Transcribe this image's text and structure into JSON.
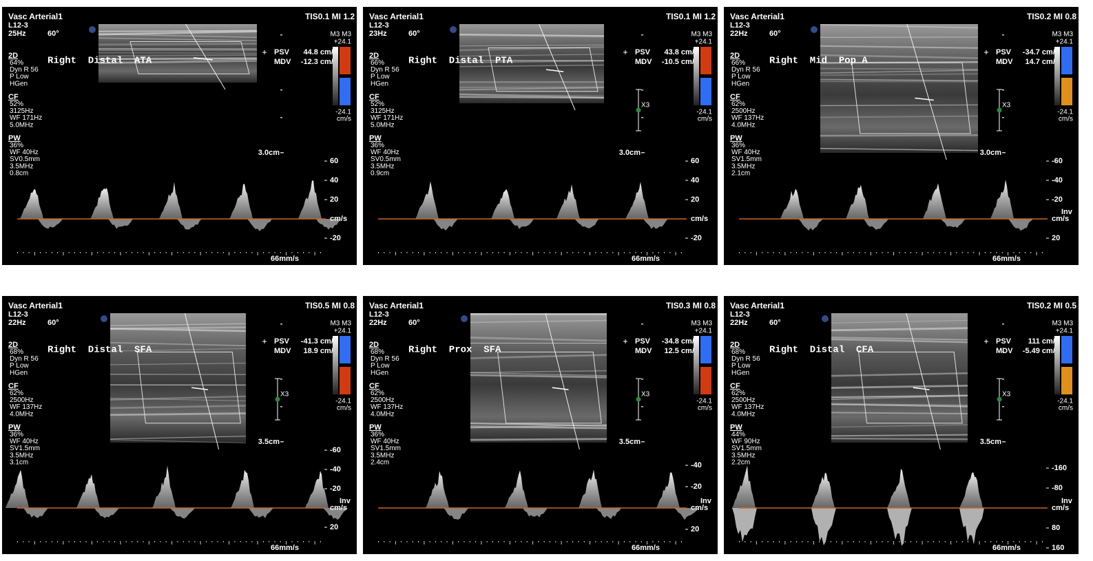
{
  "panels": [
    {
      "header": "Vasc Arterial1",
      "tis": "TIS0.1  MI 1.2",
      "probe": "L12-3",
      "rate": "25Hz",
      "angle": "60°",
      "groups": [
        {
          "title": "2D",
          "lines": [
            "64%",
            "Dyn R 56",
            "P Low",
            "HGen"
          ]
        },
        {
          "title": "CF",
          "lines": [
            "52%",
            "3125Hz",
            "WF 171Hz",
            "5.0MHz"
          ]
        },
        {
          "title": "PW",
          "lines": [
            "36%",
            "WF 40Hz",
            "SV0.5mm",
            "3.5MHz",
            "0.8cm"
          ]
        }
      ],
      "label": "Right  Distal  ATA",
      "psv_label": "PSV",
      "psv": "44.8 cm/s",
      "mdv_label": "MDV",
      "mdv": "-12.3 cm/s",
      "colorbar": {
        "mode": "M3 M3",
        "top": "+24.1",
        "bottom": "-24.1",
        "unit": "cm/s",
        "colors": [
          "#d23a10",
          "#2f6df5"
        ]
      },
      "depth": "3.0cm",
      "scale": [
        "60",
        "40",
        "20"
      ],
      "baseline": "cm/s",
      "scale_below": [
        "-20"
      ],
      "sweep": "66mm/s"
    },
    {
      "header": "Vasc Arterial1",
      "tis": "TIS0.1  MI 1.2",
      "probe": "L12-3",
      "rate": "23Hz",
      "angle": "60°",
      "groups": [
        {
          "title": "2D",
          "lines": [
            "66%",
            "Dyn R 56",
            "P Low",
            "HGen"
          ]
        },
        {
          "title": "CF",
          "lines": [
            "52%",
            "3125Hz",
            "WF 171Hz",
            "5.0MHz"
          ]
        },
        {
          "title": "PW",
          "lines": [
            "36%",
            "WF 40Hz",
            "SV0.5mm",
            "3.5MHz",
            "0.9cm"
          ]
        }
      ],
      "label": "Right  Distal  PTA",
      "psv_label": "PSV",
      "psv": "43.8 cm/s",
      "mdv_label": "MDV",
      "mdv": "-10.5 cm/s",
      "colorbar": {
        "mode": "M3 M3",
        "top": "+24.1",
        "bottom": "-24.1",
        "unit": "cm/s",
        "colors": [
          "#d23a10",
          "#2f6df5"
        ]
      },
      "marker": "X3",
      "depth": "3.0cm",
      "scale": [
        "60",
        "40",
        "20"
      ],
      "baseline": "cm/s",
      "scale_below": [
        "-20"
      ],
      "sweep": "66mm/s"
    },
    {
      "header": "Vasc Arterial1",
      "tis": "TIS0.2  MI 0.8",
      "probe": "L12-3",
      "rate": "22Hz",
      "angle": "60°",
      "groups": [
        {
          "title": "2D",
          "lines": [
            "66%",
            "Dyn R 56",
            "P Low",
            "HGen"
          ]
        },
        {
          "title": "CF",
          "lines": [
            "62%",
            "2500Hz",
            "WF 137Hz",
            "4.0MHz"
          ]
        },
        {
          "title": "PW",
          "lines": [
            "36%",
            "WF 40Hz",
            "SV1.5mm",
            "3.5MHz",
            "2.1cm"
          ]
        }
      ],
      "label": "Right  Mid  Pop A",
      "psv_label": "PSV",
      "psv": "-34.7 cm/s",
      "mdv_label": "MDV",
      "mdv": "14.7 cm/s",
      "colorbar": {
        "mode": "M3 M3",
        "top": "+24.1",
        "bottom": "-24.1",
        "unit": "cm/s",
        "colors": [
          "#2f6df5",
          "#e0901a"
        ]
      },
      "marker": "X3",
      "depth": "3.0cm",
      "scale": [
        "-60",
        "-40",
        "-20"
      ],
      "invert": "Inv",
      "baseline": "cm/s",
      "scale_below": [
        "20"
      ],
      "sweep": "66mm/s"
    },
    {
      "header": "Vasc Arterial1",
      "tis": "TIS0.5  MI 0.8",
      "probe": "L12-3",
      "rate": "22Hz",
      "angle": "60°",
      "groups": [
        {
          "title": "2D",
          "lines": [
            "68%",
            "Dyn R 56",
            "P Low",
            "HGen"
          ]
        },
        {
          "title": "CF",
          "lines": [
            "62%",
            "2500Hz",
            "WF 137Hz",
            "4.0MHz"
          ]
        },
        {
          "title": "PW",
          "lines": [
            "36%",
            "WF 40Hz",
            "SV1.5mm",
            "3.5MHz",
            "3.1cm"
          ]
        }
      ],
      "label": "Right  Distal  SFA",
      "psv_label": "PSV",
      "psv": "-41.3 cm/s",
      "mdv_label": "MDV",
      "mdv": "18.9 cm/s",
      "colorbar": {
        "mode": "M3 M3",
        "top": "+24.1",
        "bottom": "-24.1",
        "unit": "cm/s",
        "colors": [
          "#2f6df5",
          "#d23a10"
        ]
      },
      "marker": "X3",
      "depth": "3.5cm",
      "scale": [
        "-60",
        "-40",
        "-20"
      ],
      "invert": "Inv",
      "baseline": "cm/s",
      "scale_below": [
        "20"
      ],
      "sweep": "66mm/s"
    },
    {
      "header": "Vasc Arterial1",
      "tis": "TIS0.3  MI 0.8",
      "probe": "L12-3",
      "rate": "22Hz",
      "angle": "60°",
      "groups": [
        {
          "title": "2D",
          "lines": [
            "68%",
            "Dyn R 56",
            "P Low",
            "HGen"
          ]
        },
        {
          "title": "CF",
          "lines": [
            "62%",
            "2500Hz",
            "WF 137Hz",
            "4.0MHz"
          ]
        },
        {
          "title": "PW",
          "lines": [
            "36%",
            "WF 40Hz",
            "SV1.5mm",
            "3.5MHz",
            "2.4cm"
          ]
        }
      ],
      "label": "Right  Prox  SFA",
      "psv_label": "PSV",
      "psv": "-34.8 cm/s",
      "mdv_label": "MDV",
      "mdv": "12.5 cm/s",
      "colorbar": {
        "mode": "M3 M3",
        "top": "+24.1",
        "bottom": "-24.1",
        "unit": "cm/s",
        "colors": [
          "#2f6df5",
          "#d23a10"
        ]
      },
      "marker": "X3",
      "depth": "3.5cm",
      "scale": [
        "-40",
        "-20"
      ],
      "invert": "Inv",
      "baseline": "cm/s",
      "scale_below": [
        "20"
      ],
      "sweep": "66mm/s"
    },
    {
      "header": "Vasc Arterial1",
      "tis": "TIS0.2  MI 0.5",
      "probe": "L12-3",
      "rate": "22Hz",
      "angle": "60°",
      "groups": [
        {
          "title": "2D",
          "lines": [
            "68%",
            "Dyn R 56",
            "P Low",
            "HGen"
          ]
        },
        {
          "title": "CF",
          "lines": [
            "62%",
            "2500Hz",
            "WF 137Hz",
            "4.0MHz"
          ]
        },
        {
          "title": "PW",
          "lines": [
            "44%",
            "WF 90Hz",
            "SV1.5mm",
            "3.5MHz",
            "2.2cm"
          ]
        }
      ],
      "label": "Right  Distal  CFA",
      "psv_label": "PSV",
      "psv": "111 cm/s",
      "mdv_label": "MDV",
      "mdv": "-5.49 cm/s",
      "colorbar": {
        "mode": "M3 M3",
        "top": "+24.1",
        "bottom": "-24.1",
        "unit": "cm/s",
        "colors": [
          "#2f6df5",
          "#e0901a"
        ]
      },
      "marker": "X3",
      "depth": "3.5cm",
      "scale": [
        "-160",
        "-80"
      ],
      "invert": "Inv",
      "baseline": "cm/s",
      "scale_below": [
        "80",
        "160"
      ],
      "sweep": "66mm/s"
    }
  ]
}
